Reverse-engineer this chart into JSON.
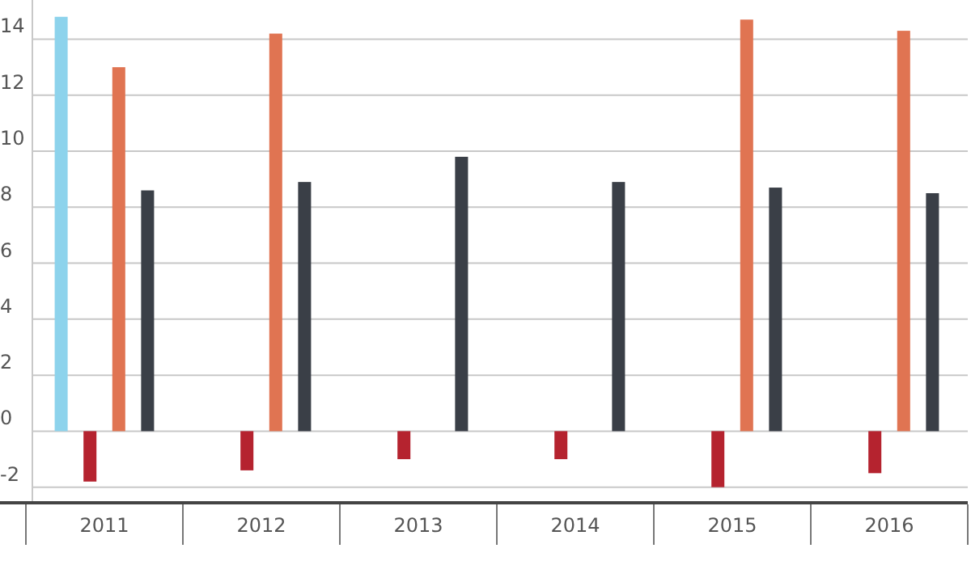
{
  "chart_data": {
    "type": "bar",
    "categories": [
      "2011",
      "2012",
      "2013",
      "2014",
      "2015",
      "2016"
    ],
    "series": [
      {
        "color": "#8dd3ec",
        "values": [
          14.8,
          null,
          null,
          null,
          null,
          null
        ]
      },
      {
        "color": "#b5232f",
        "values": [
          -1.8,
          -1.4,
          -1.0,
          -1.0,
          -2.0,
          -1.5
        ]
      },
      {
        "color": "#e07452",
        "values": [
          13.0,
          14.2,
          null,
          null,
          14.7,
          14.3
        ]
      },
      {
        "color": "#3a3f47",
        "values": [
          8.6,
          8.9,
          9.8,
          8.9,
          8.7,
          8.5
        ]
      }
    ],
    "ylim": [
      -2.5,
      15.4
    ],
    "yticks": [
      {
        "value": -2,
        "label": "-2"
      },
      0,
      2,
      4,
      6,
      8,
      10,
      12,
      14
    ],
    "grid": "y"
  }
}
